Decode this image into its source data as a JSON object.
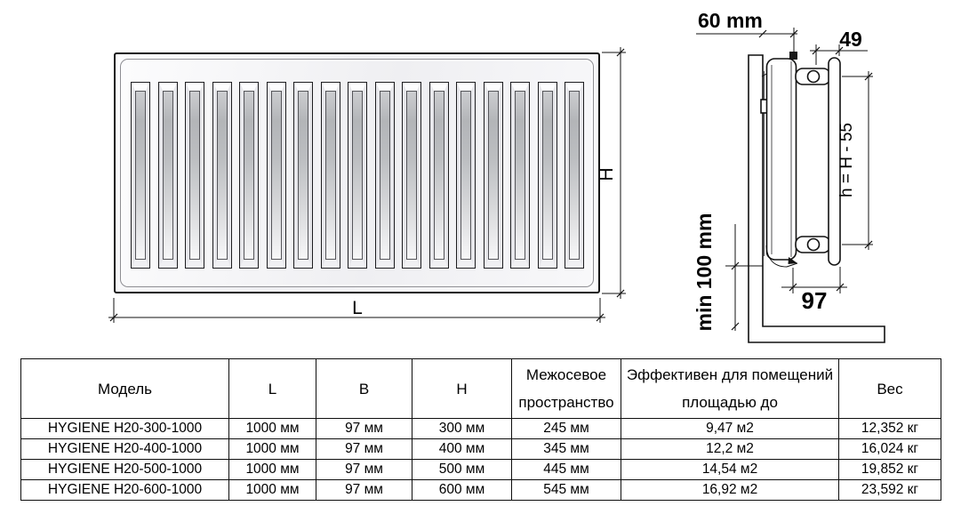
{
  "front_view": {
    "length_label": "L",
    "height_label": "H",
    "slat_count": 17
  },
  "side_view": {
    "wall_offset_label": "60 mm",
    "panel_depth_label": "49",
    "axis_height_label": "h = H - 55",
    "floor_clearance_label": "min 100 mm",
    "bottom_depth_label": "97"
  },
  "table": {
    "headers": [
      "Модель",
      "L",
      "B",
      "H",
      "Межосевое пространство",
      "Эффективен для помещений площадью до",
      "Вес"
    ],
    "rows": [
      [
        "HYGIENE H20-300-1000",
        "1000 мм",
        "97 мм",
        "300 мм",
        "245 мм",
        "9,47 м2",
        "12,352 кг"
      ],
      [
        "HYGIENE H20-400-1000",
        "1000 мм",
        "97 мм",
        "400 мм",
        "345 мм",
        "12,2 м2",
        "16,024 кг"
      ],
      [
        "HYGIENE H20-500-1000",
        "1000 мм",
        "97 мм",
        "500 мм",
        "445 мм",
        "14,54 м2",
        "19,852 кг"
      ],
      [
        "HYGIENE H20-600-1000",
        "1000 мм",
        "97 мм",
        "600 мм",
        "545 мм",
        "16,92 м2",
        "23,592 кг"
      ]
    ]
  },
  "colors": {
    "line": "#111111",
    "radiator_face": "#f2f2f4",
    "slat_channel": "#b4b6b9",
    "background": "#ffffff"
  }
}
